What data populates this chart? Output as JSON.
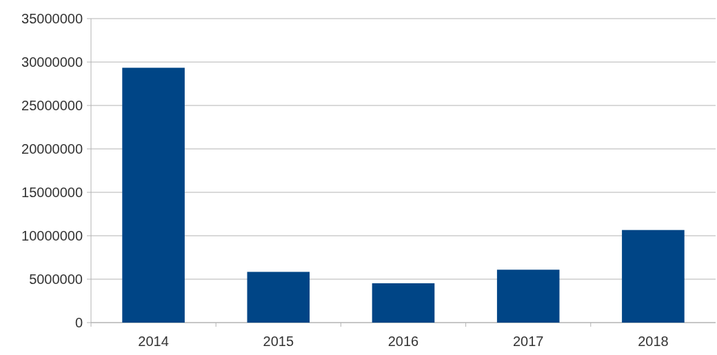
{
  "chart_data": {
    "type": "bar",
    "categories": [
      "2014",
      "2015",
      "2016",
      "2017",
      "2018"
    ],
    "values": [
      29340000,
      5840000,
      4530000,
      6090000,
      10660000
    ],
    "color": "#004586",
    "ylim": [
      0,
      35000000
    ],
    "yticks": [
      0,
      5000000,
      10000000,
      15000000,
      20000000,
      25000000,
      30000000,
      35000000
    ],
    "grid": "y"
  }
}
